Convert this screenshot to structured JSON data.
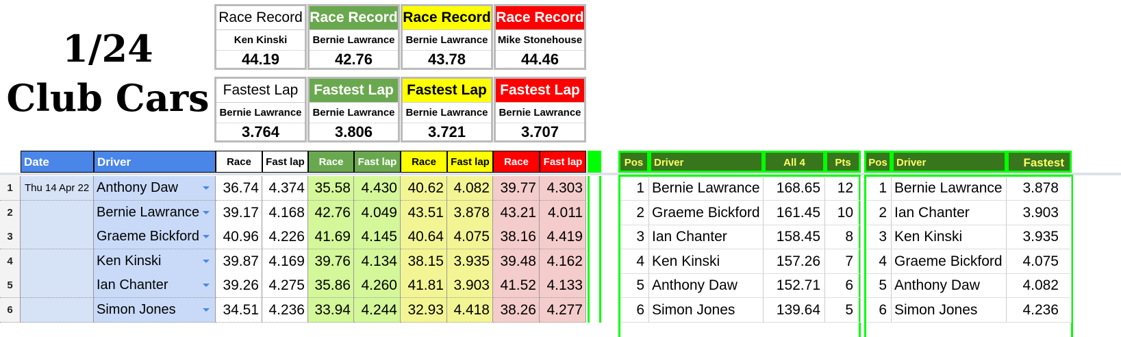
{
  "title_line1": "1/24",
  "title_line2": "Club Cars",
  "colors": {
    "white": "#ffffff",
    "green": "#6aa84f",
    "yellow": "#ffff00",
    "red": "#ff0000",
    "header_blue": "#4a86e8",
    "dark_green": "#38761d",
    "bright_green": "#00ff00"
  },
  "records": [
    {
      "label": "Race Record",
      "name": "Ken Kinski",
      "value": "44.19"
    },
    {
      "label": "Race Record",
      "name": "Bernie Lawrance",
      "value": "42.76"
    },
    {
      "label": "Race Record",
      "name": "Bernie Lawrance",
      "value": "43.78"
    },
    {
      "label": "Race Record",
      "name": "Mike Stonehouse",
      "value": "44.46"
    }
  ],
  "fastest": [
    {
      "label": "Fastest Lap",
      "name": "Bernie Lawrance",
      "value": "3.764"
    },
    {
      "label": "Fastest Lap",
      "name": "Bernie Lawrance",
      "value": "3.806"
    },
    {
      "label": "Fastest Lap",
      "name": "Bernie Lawrance",
      "value": "3.721"
    },
    {
      "label": "Fastest Lap",
      "name": "Bernie Lawrance",
      "value": "3.707"
    }
  ],
  "results": {
    "headers": [
      "Date",
      "Driver",
      "Race",
      "Fast lap",
      "Race",
      "Fast lap",
      "Race",
      "Fast lap",
      "Race",
      "Fast lap"
    ],
    "rows": [
      {
        "n": "1",
        "date": "Thu 14 Apr 22",
        "driver": "Anthony Daw",
        "v": [
          "36.74",
          "4.374",
          "35.58",
          "4.430",
          "40.62",
          "4.082",
          "39.77",
          "4.303"
        ]
      },
      {
        "n": "2",
        "date": "",
        "driver": "Bernie Lawrance",
        "v": [
          "39.17",
          "4.168",
          "42.76",
          "4.049",
          "43.51",
          "3.878",
          "43.21",
          "4.011"
        ]
      },
      {
        "n": "3",
        "date": "",
        "driver": "Graeme Bickford",
        "v": [
          "40.96",
          "4.226",
          "41.69",
          "4.145",
          "40.64",
          "4.075",
          "38.16",
          "4.419"
        ]
      },
      {
        "n": "4",
        "date": "",
        "driver": "Ken Kinski",
        "v": [
          "39.87",
          "4.169",
          "39.76",
          "4.134",
          "38.15",
          "3.935",
          "39.48",
          "4.162"
        ]
      },
      {
        "n": "5",
        "date": "",
        "driver": "Ian Chanter",
        "v": [
          "39.26",
          "4.275",
          "35.86",
          "4.260",
          "41.81",
          "3.903",
          "41.52",
          "4.133"
        ]
      },
      {
        "n": "6",
        "date": "",
        "driver": "Simon Jones",
        "v": [
          "34.51",
          "4.236",
          "33.94",
          "4.244",
          "32.93",
          "4.418",
          "38.26",
          "4.277"
        ]
      }
    ]
  },
  "standings": {
    "headers": [
      "Pos",
      "Driver",
      "All 4",
      "Pts"
    ],
    "rows": [
      [
        "1",
        "Bernie Lawrance",
        "168.65",
        "12"
      ],
      [
        "2",
        "Graeme Bickford",
        "161.45",
        "10"
      ],
      [
        "3",
        "Ian Chanter",
        "158.45",
        "8"
      ],
      [
        "4",
        "Ken Kinski",
        "157.26",
        "7"
      ],
      [
        "5",
        "Anthony Daw",
        "152.71",
        "6"
      ],
      [
        "6",
        "Simon Jones",
        "139.64",
        "5"
      ]
    ]
  },
  "fastest_table": {
    "headers": [
      "Pos",
      "Driver",
      "Fastest"
    ],
    "rows": [
      [
        "1",
        "Bernie Lawrance",
        "3.878"
      ],
      [
        "2",
        "Ian Chanter",
        "3.903"
      ],
      [
        "3",
        "Ken Kinski",
        "3.935"
      ],
      [
        "4",
        "Graeme Bickford",
        "4.075"
      ],
      [
        "5",
        "Anthony Daw",
        "4.082"
      ],
      [
        "6",
        "Simon Jones",
        "4.236"
      ]
    ]
  }
}
